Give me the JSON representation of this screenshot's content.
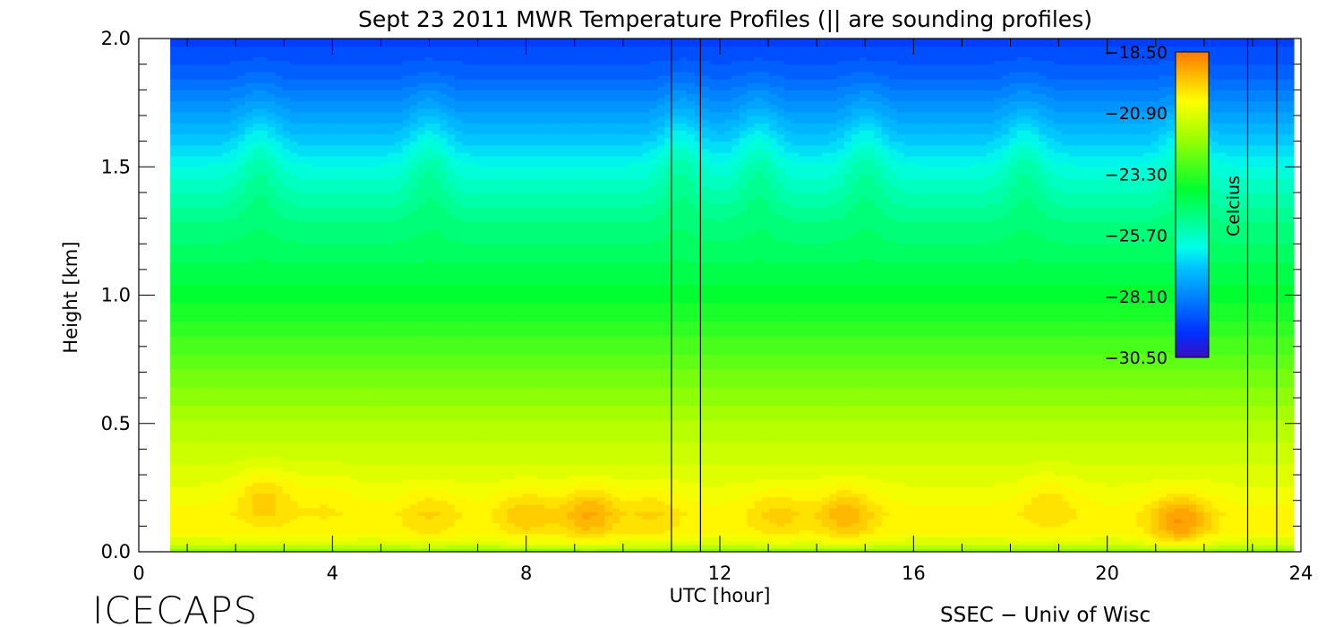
{
  "chart_data": {
    "type": "heatmap",
    "title": "Sept 23 2011 MWR Temperature Profiles (|| are sounding profiles)",
    "xlabel": "UTC [hour]",
    "ylabel": "Height [km]",
    "xlim": [
      0,
      24
    ],
    "ylim": [
      0,
      2.0
    ],
    "x_ticks": [
      "0",
      "4",
      "8",
      "12",
      "16",
      "20",
      "24"
    ],
    "y_ticks": [
      "0.0",
      "0.5",
      "1.0",
      "1.5",
      "2.0"
    ],
    "data_x_range": [
      0.65,
      23.85
    ],
    "sounding_times": [
      11.0,
      11.6,
      22.9,
      23.5
    ],
    "hot_spots": [
      {
        "x": 2.6,
        "y": 0.22,
        "value": -19.5
      },
      {
        "x": 3.9,
        "y": 0.22,
        "value": -20.0
      },
      {
        "x": 6.0,
        "y": 0.15,
        "value": -19.8
      },
      {
        "x": 8.0,
        "y": 0.15,
        "value": -19.6
      },
      {
        "x": 9.3,
        "y": 0.15,
        "value": -19.2
      },
      {
        "x": 10.6,
        "y": 0.15,
        "value": -19.8
      },
      {
        "x": 13.2,
        "y": 0.15,
        "value": -19.7
      },
      {
        "x": 14.6,
        "y": 0.15,
        "value": -19.3
      },
      {
        "x": 18.8,
        "y": 0.2,
        "value": -19.8
      },
      {
        "x": 21.5,
        "y": 0.12,
        "value": -18.9
      }
    ],
    "colorbar": {
      "label": "Celcius",
      "min": -30.5,
      "max": -18.5,
      "tick_labels": [
        "−18.50",
        "−20.90",
        "−23.30",
        "−25.70",
        "−28.10",
        "−30.50"
      ],
      "tick_values": [
        -18.5,
        -20.9,
        -23.3,
        -25.7,
        -28.1,
        -30.5
      ]
    }
  },
  "footer": {
    "brand": "ICECAPS",
    "credit": "SSEC − Univ of Wisc"
  }
}
